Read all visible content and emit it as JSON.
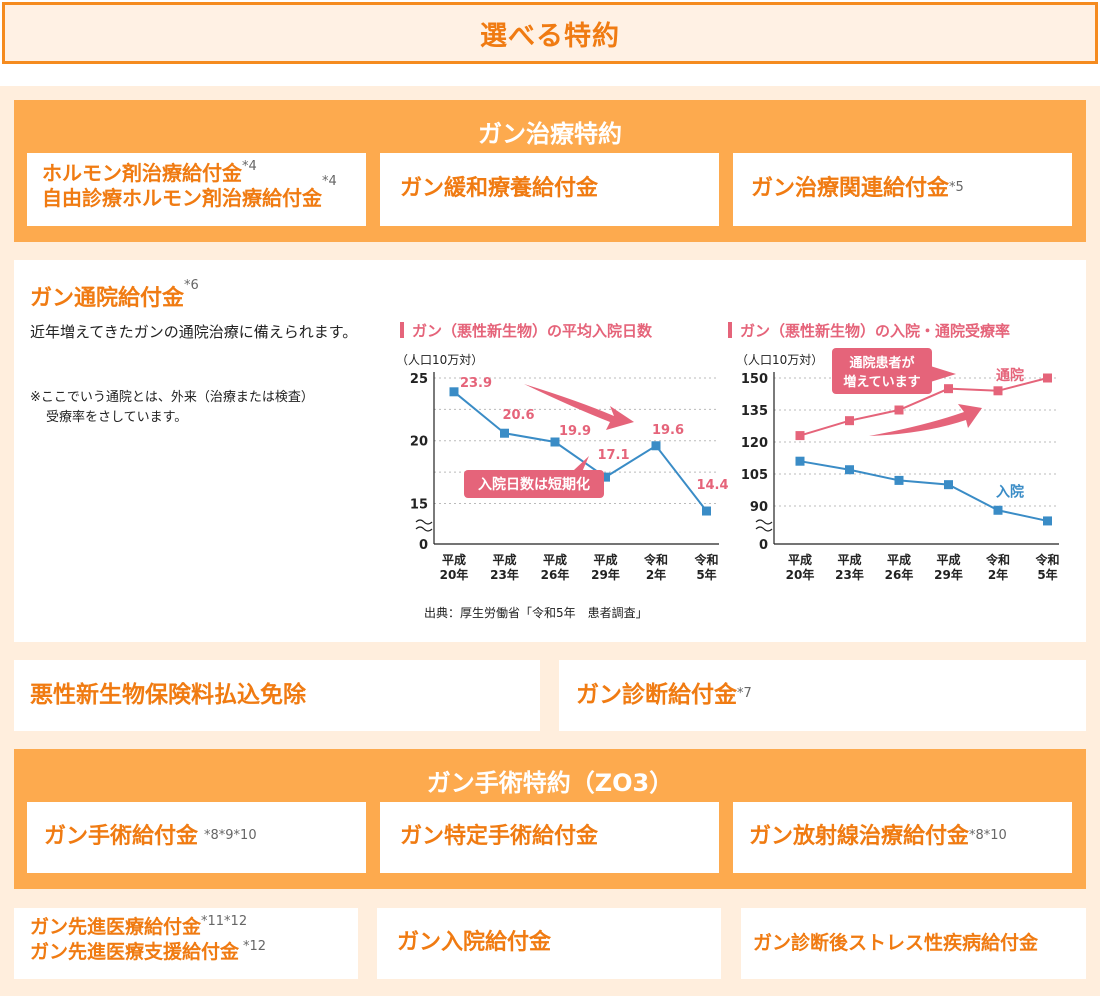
{
  "header": {
    "title": "選べる特約"
  },
  "section1": {
    "title": "ガン治療特約",
    "cards": [
      {
        "line1": "ホルモン剤治療給付金",
        "sup1": "*4",
        "line2": "自由診療ホルモン剤治療給付金",
        "sup2": "*4"
      },
      {
        "label": "ガン緩和療養給付金"
      },
      {
        "label": "ガン治療関連給付金",
        "sup": "*5"
      }
    ]
  },
  "outpatient": {
    "title": "ガン通院給付金",
    "sup": "*6",
    "desc": "近年増えてきたガンの通院治療に備えられます。",
    "note1": "※ここでいう通院とは、外来（治療または検査）",
    "note2": "受療率をさしています。",
    "source": "出典：厚生労働省「令和5年　患者調査」"
  },
  "chart_data": [
    {
      "type": "line",
      "title": "ガン（悪性新生物）の平均入院日数",
      "unit_label": "（人口10万対）",
      "categories": [
        [
          "平成",
          "20年"
        ],
        [
          "平成",
          "23年"
        ],
        [
          "平成",
          "26年"
        ],
        [
          "平成",
          "29年"
        ],
        [
          "令和",
          "2年"
        ],
        [
          "令和",
          "5年"
        ]
      ],
      "values": [
        23.9,
        20.6,
        19.9,
        17.1,
        19.6,
        14.4
      ],
      "value_labels": [
        "23.9",
        "20.6",
        "19.9",
        "17.1",
        "19.6",
        "14.4"
      ],
      "yticks": [
        "25",
        "20",
        "15",
        "0"
      ],
      "ylim": [
        13,
        25
      ],
      "axis_break": true,
      "callout": "入院日数は短期化",
      "line_color": "#3a8cc6",
      "label_color": "#e5647a"
    },
    {
      "type": "line",
      "title": "ガン（悪性新生物）の入院・通院受療率",
      "unit_label": "（人口10万対）",
      "categories": [
        [
          "平成",
          "20年"
        ],
        [
          "平成",
          "23年"
        ],
        [
          "平成",
          "26年"
        ],
        [
          "平成",
          "29年"
        ],
        [
          "令和",
          "2年"
        ],
        [
          "令和",
          "5年"
        ]
      ],
      "series": [
        {
          "name": "通院",
          "values": [
            123,
            130,
            135,
            145,
            144,
            150
          ],
          "color": "#e5647a"
        },
        {
          "name": "入院",
          "values": [
            111,
            107,
            102,
            100,
            88,
            83
          ],
          "color": "#3a8cc6"
        }
      ],
      "yticks": [
        "150",
        "135",
        "120",
        "105",
        "90",
        "0"
      ],
      "ylim": [
        80,
        150
      ],
      "axis_break": true,
      "callout_line1": "通院患者が",
      "callout_line2": "増えています"
    }
  ],
  "row3": {
    "left": {
      "label": "悪性新生物保険料払込免除"
    },
    "right": {
      "label": "ガン診断給付金",
      "sup": "*7"
    }
  },
  "section2": {
    "title": "ガン手術特約（ZO3）",
    "cards": [
      {
        "label": "ガン手術給付金",
        "sup": "*8*9*10"
      },
      {
        "label": "ガン特定手術給付金"
      },
      {
        "label": "ガン放射線治療給付金",
        "sup": "*8*10"
      }
    ]
  },
  "row5": [
    {
      "line1": "ガン先進医療給付金",
      "sup1": "*11*12",
      "line2": "ガン先進医療支援給付金",
      "sup2": "*12"
    },
    {
      "label": "ガン入院給付金"
    },
    {
      "label": "ガン診断後ストレス性疾病給付金"
    }
  ]
}
